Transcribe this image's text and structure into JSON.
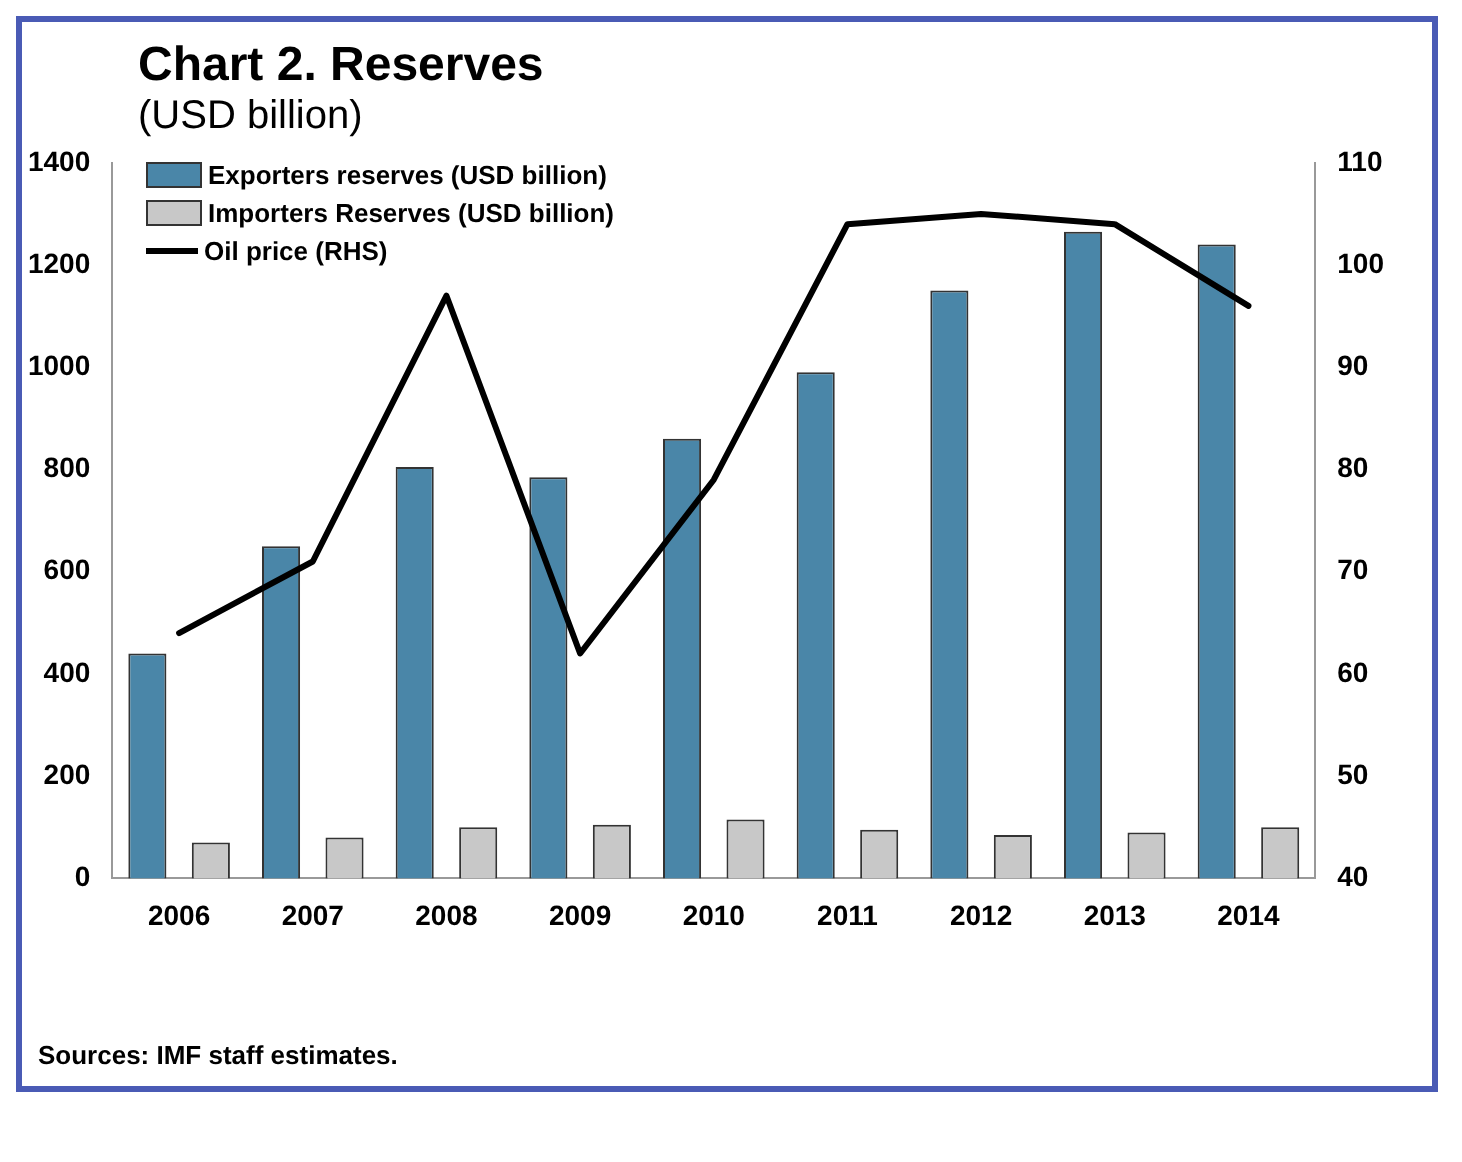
{
  "chart_data": {
    "type": "bar",
    "title": "Chart 2. Reserves",
    "subtitle": "(USD billion)",
    "categories": [
      "2006",
      "2007",
      "2008",
      "2009",
      "2010",
      "2011",
      "2012",
      "2013",
      "2014"
    ],
    "series": [
      {
        "name": "Exporters reserves (USD billion)",
        "color": "#4a86a8",
        "values": [
          440,
          650,
          805,
          785,
          860,
          990,
          1150,
          1265,
          1240
        ]
      },
      {
        "name": "Importers Reserves (USD billion)",
        "color": "#c8c8c8",
        "values": [
          70,
          80,
          100,
          105,
          115,
          95,
          85,
          90,
          100
        ]
      },
      {
        "name": "Oil price (RHS)",
        "type": "line",
        "axis": "y2",
        "color": "#000000",
        "values": [
          64,
          71,
          97,
          62,
          79,
          104,
          105,
          104,
          96
        ]
      }
    ],
    "ylim": [
      0,
      1400
    ],
    "yticks": [
      0,
      200,
      400,
      600,
      800,
      1000,
      1200,
      1400
    ],
    "y2lim": [
      40,
      110
    ],
    "y2ticks": [
      40,
      50,
      60,
      70,
      80,
      90,
      100,
      110
    ],
    "grid": false,
    "legend": "top left",
    "marker": "none",
    "annotations": [
      "Sources: IMF staff estimates."
    ]
  }
}
